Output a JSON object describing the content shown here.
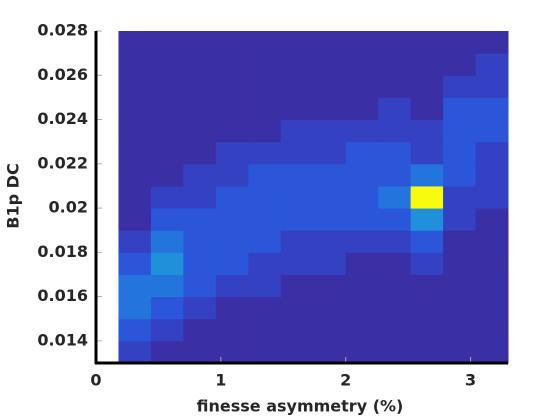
{
  "chart_data": {
    "type": "heatmap",
    "xlabel": "finesse asymmetry (%)",
    "ylabel": "B1p DC",
    "xlim": [
      0,
      3.3
    ],
    "ylim": [
      0.013,
      0.028
    ],
    "xticks": [
      0,
      1,
      2,
      3
    ],
    "yticks": [
      0.014,
      0.016,
      0.018,
      0.02,
      0.022,
      0.024,
      0.026,
      0.028
    ],
    "xbins": [
      0.18,
      0.44,
      0.7,
      0.96,
      1.22,
      1.48,
      1.74,
      2.0,
      2.26,
      2.52,
      2.78,
      3.04,
      3.3
    ],
    "ybins": [
      0.013,
      0.014,
      0.015,
      0.016,
      0.017,
      0.018,
      0.019,
      0.02,
      0.021,
      0.022,
      0.023,
      0.024,
      0.025,
      0.026,
      0.027,
      0.028
    ],
    "z": [
      [
        1,
        0,
        0,
        0,
        0,
        0,
        0,
        0,
        0,
        0,
        0,
        0
      ],
      [
        2,
        1,
        0,
        0,
        0,
        0,
        0,
        0,
        0,
        0,
        0,
        0
      ],
      [
        3,
        2,
        1,
        0,
        0,
        0,
        0,
        0,
        0,
        0,
        0,
        0
      ],
      [
        3,
        3,
        2,
        1,
        1,
        0,
        0,
        0,
        0,
        0,
        0,
        0
      ],
      [
        2,
        4,
        2,
        2,
        1,
        1,
        1,
        0,
        0,
        1,
        0,
        0
      ],
      [
        1,
        3,
        2,
        2,
        2,
        1,
        1,
        1,
        1,
        2,
        0,
        0
      ],
      [
        0,
        2,
        2,
        2,
        2,
        2,
        2,
        2,
        2,
        4,
        1,
        0
      ],
      [
        0,
        1,
        1,
        2,
        2,
        2,
        2,
        2,
        3,
        9,
        1,
        1
      ],
      [
        0,
        0,
        1,
        1,
        2,
        2,
        2,
        2,
        2,
        3,
        2,
        1
      ],
      [
        0,
        0,
        0,
        1,
        1,
        1,
        1,
        2,
        2,
        1,
        2,
        1
      ],
      [
        0,
        0,
        0,
        0,
        0,
        1,
        1,
        1,
        1,
        1,
        2,
        2
      ],
      [
        0,
        0,
        0,
        0,
        0,
        0,
        0,
        0,
        1,
        0,
        2,
        2
      ],
      [
        0,
        0,
        0,
        0,
        0,
        0,
        0,
        0,
        0,
        0,
        1,
        1
      ],
      [
        0,
        0,
        0,
        0,
        0,
        0,
        0,
        0,
        0,
        0,
        0,
        1
      ],
      [
        0,
        0,
        0,
        0,
        0,
        0,
        0,
        0,
        0,
        0,
        0,
        0
      ]
    ],
    "colormap": [
      "#3b2fa6",
      "#2d50d8",
      "#1f86e0",
      "#1eb3c0",
      "#8cc56b",
      "#f9fb0e"
    ]
  }
}
